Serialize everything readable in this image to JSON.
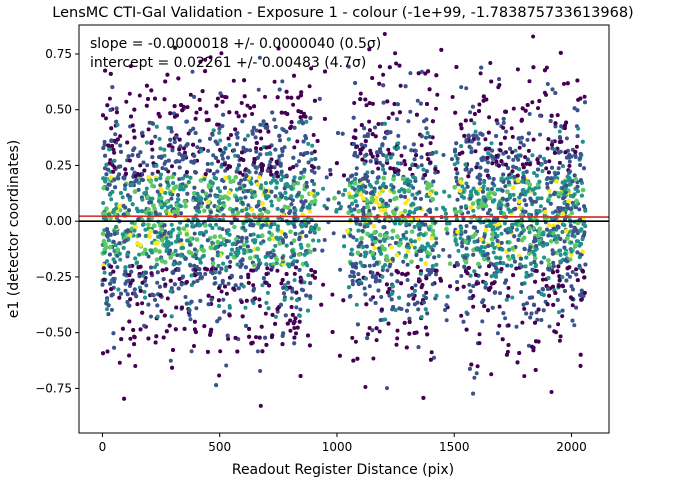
{
  "chart_data": {
    "type": "scatter",
    "title": "LensMC CTI-Gal Validation - Exposure 1 - colour (-1e+99, -1.783875733613968)",
    "xlabel": "Readout Register Distance (pix)",
    "ylabel": "e1 (detector coordinates)",
    "xlim": [
      -100,
      2160
    ],
    "ylim": [
      -0.95,
      0.88
    ],
    "x_ticks": [
      0,
      500,
      1000,
      1500,
      2000
    ],
    "x_tick_labels": [
      "0",
      "500",
      "1000",
      "1500",
      "2000"
    ],
    "y_ticks": [
      -0.75,
      -0.5,
      -0.25,
      0.0,
      0.25,
      0.5,
      0.75
    ],
    "y_tick_labels": [
      "−0.75",
      "−0.50",
      "−0.25",
      "0.00",
      "0.25",
      "0.50",
      "0.75"
    ],
    "annotations": {
      "slope": "slope = -0.0000018 +/- 0.0000040 (0.5σ)",
      "intercept": "intercept = 0.02261 +/- 0.00483 (4.7σ)"
    },
    "fit_line": {
      "slope": -1.8e-06,
      "intercept": 0.02261,
      "color": "#d62728"
    },
    "zero_line": {
      "y": 0.0,
      "color": "#000000"
    },
    "points": {
      "x_range": [
        0,
        2060
      ],
      "gaps": [
        [
          910,
          1050
        ],
        [
          1430,
          1500
        ]
      ],
      "count_approx": 6000,
      "y_spread": [
        -0.87,
        0.87
      ],
      "colormap": [
        "#440154",
        "#3b528b",
        "#21918c",
        "#5ec962",
        "#fde725"
      ]
    },
    "grid": false,
    "legend": "none"
  }
}
